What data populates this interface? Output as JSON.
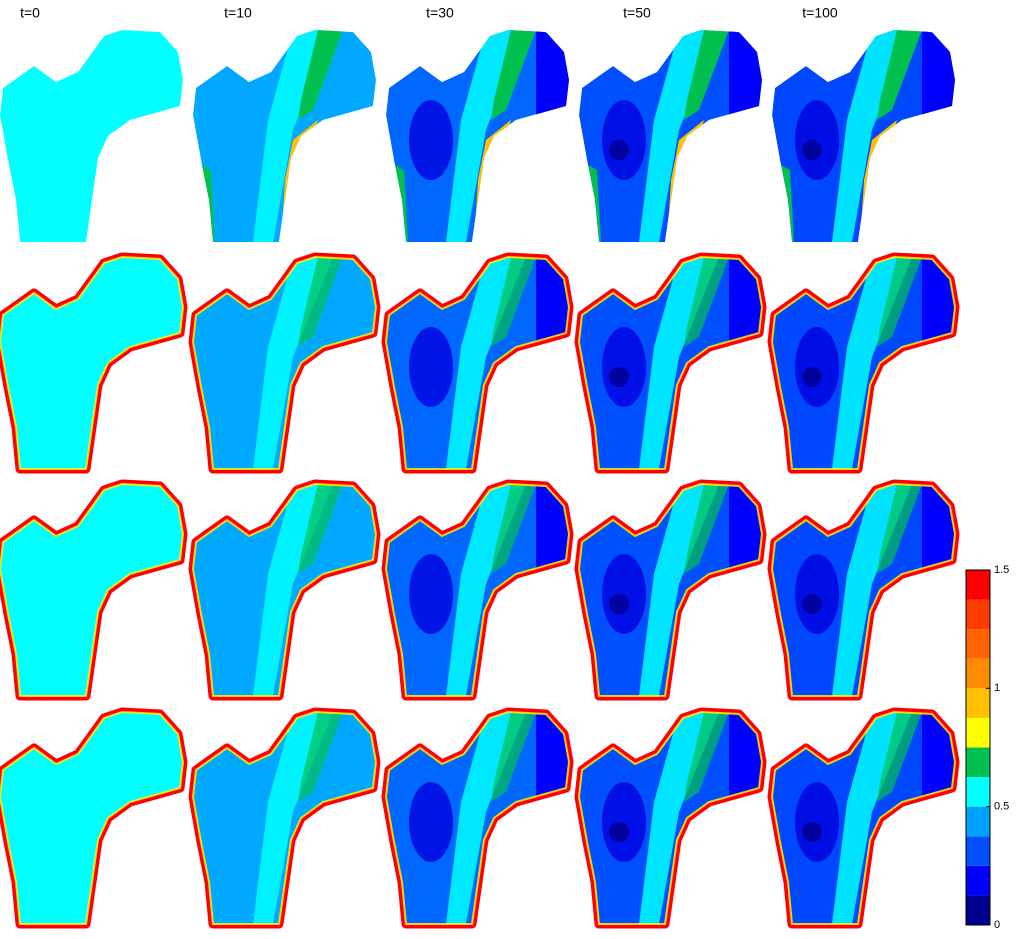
{
  "column_labels": [
    "t=0",
    "t=10",
    "t=30",
    "t=50",
    "t=100"
  ],
  "colorbar": {
    "lim": [
      0,
      1.5
    ],
    "ticks": [
      0,
      0.5,
      1,
      1.5
    ],
    "colors": [
      "#00008f",
      "#0000ff",
      "#0050ff",
      "#00a0ff",
      "#00ffff",
      "#00c050",
      "#ffff00",
      "#ffc000",
      "#ff8c00",
      "#ff6400",
      "#ff3c00",
      "#ff0000"
    ]
  }
}
